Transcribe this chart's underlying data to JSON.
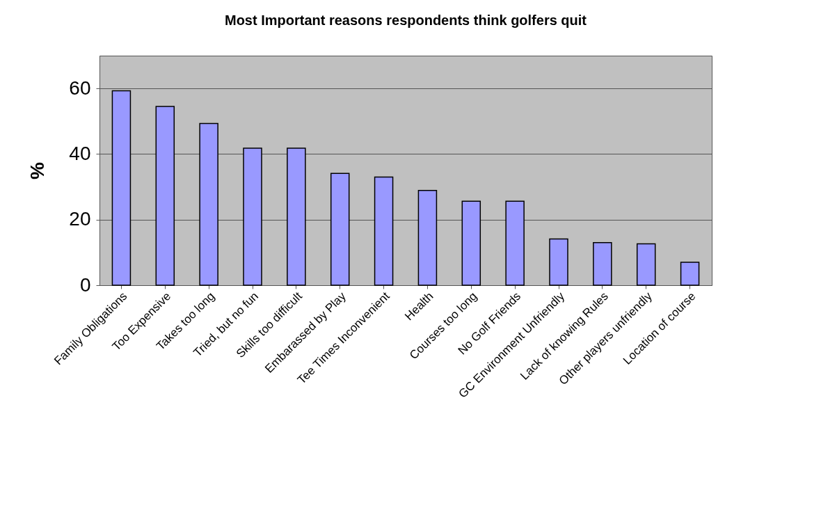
{
  "chart_data": {
    "type": "bar",
    "title": "Most Important reasons respondents think golfers quit",
    "ylabel": "%",
    "categories": [
      "Family Obligations",
      "Too Expensive",
      "Takes too long",
      "Tried, but no fun",
      "Skills too difficult",
      "Embarassed by Play",
      "Tee Times Inconvenient",
      "Health",
      "Courses too long",
      "No Golf Friends",
      "GC Environment Unfriendly",
      "Lack of knowing Rules",
      "Other players unfriendly",
      "Location of course"
    ],
    "values": [
      59.3,
      54.5,
      49.3,
      41.8,
      41.8,
      34.1,
      33.0,
      28.9,
      25.6,
      25.6,
      14.1,
      13.0,
      12.6,
      7.0
    ],
    "color": "#9999ff",
    "ylim": [
      0,
      70
    ],
    "yticks": [
      0,
      20,
      40,
      60
    ],
    "grid": "y"
  }
}
